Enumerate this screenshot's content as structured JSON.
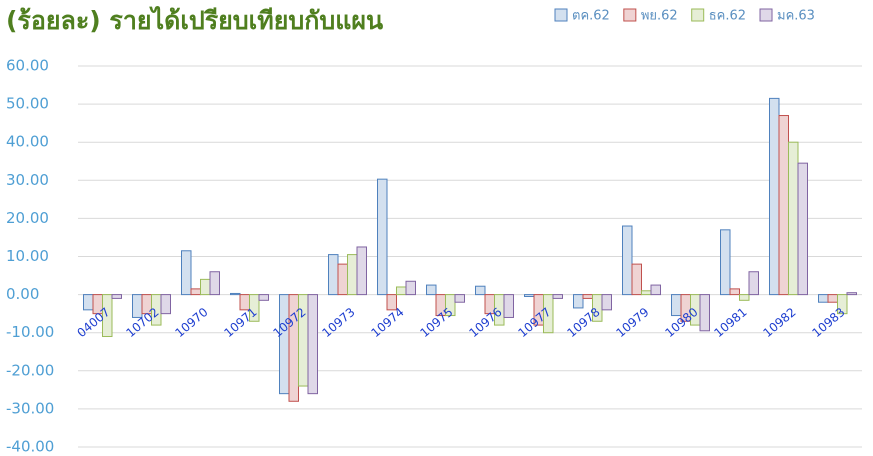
{
  "chart_data": {
    "type": "bar",
    "title": "(ร้อยละ) รายได้เปรียบเทียบกับแผน",
    "categories": [
      "04007",
      "10702",
      "10970",
      "10971",
      "10972",
      "10973",
      "10974",
      "10975",
      "10976",
      "10977",
      "10978",
      "10979",
      "10980",
      "10981",
      "10982",
      "10983"
    ],
    "series": [
      {
        "name": "ตค.62",
        "color": "#4f81bd",
        "values": [
          -4,
          -6,
          11.5,
          0.3,
          -26,
          10.5,
          30.3,
          2.5,
          2.2,
          -0.5,
          -3.5,
          18,
          -5.5,
          17,
          51.5,
          -2
        ]
      },
      {
        "name": "พย.62",
        "color": "#c0504d",
        "values": [
          -5,
          -5,
          1.5,
          -4,
          -28,
          8,
          -4,
          -5.5,
          -5,
          -8,
          -1,
          8,
          -7,
          1.5,
          47,
          -2
        ]
      },
      {
        "name": "ธค.62",
        "color": "#9bbb59",
        "values": [
          -11,
          -8,
          4,
          -7,
          -24,
          10.5,
          2,
          -5.5,
          -8,
          -10,
          -7,
          1,
          -8,
          -1.5,
          40,
          -5
        ]
      },
      {
        "name": "มค.63",
        "color": "#8064a2",
        "values": [
          -1,
          -5,
          6,
          -1.5,
          -26,
          12.5,
          3.5,
          -2,
          -6,
          -1,
          -4,
          2.5,
          -9.5,
          6,
          34.5,
          0.5
        ]
      }
    ],
    "ylim": [
      -40,
      60
    ],
    "yticks": [
      {
        "value": -40,
        "label": "-40.00"
      },
      {
        "value": -30,
        "label": "-30.00"
      },
      {
        "value": -20,
        "label": "-20.00"
      },
      {
        "value": -10,
        "label": "-10.00"
      },
      {
        "value": 0,
        "label": "0.00"
      },
      {
        "value": 10,
        "label": "10.00"
      },
      {
        "value": 20,
        "label": "20.00"
      },
      {
        "value": 30,
        "label": "30.00"
      },
      {
        "value": 40,
        "label": "40.00"
      },
      {
        "value": 50,
        "label": "50.00"
      },
      {
        "value": 60,
        "label": "60.00"
      }
    ],
    "grid": true,
    "legend": "top-right"
  }
}
